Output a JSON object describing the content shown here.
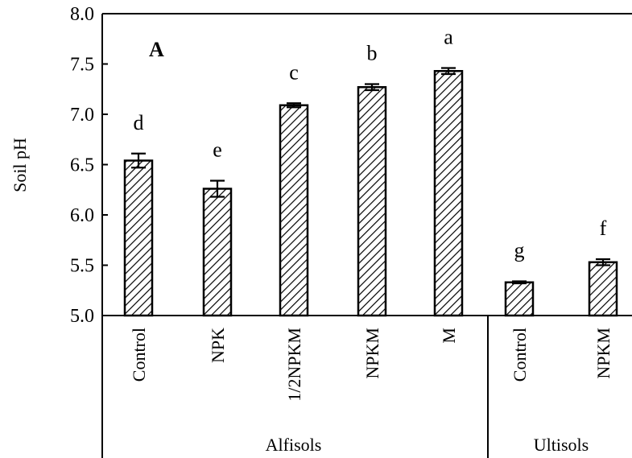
{
  "chart_data": {
    "type": "bar",
    "panel_label": "A",
    "ylabel": "Soil pH",
    "xlabel": "",
    "ylim": [
      5.0,
      8.0
    ],
    "yticks": [
      "5.0",
      "5.5",
      "6.0",
      "6.5",
      "7.0",
      "7.5",
      "8.0"
    ],
    "categories": [
      "Control",
      "NPK",
      "1/2NPKM",
      "NPKM",
      "M",
      "Control",
      "NPKM"
    ],
    "values": [
      6.54,
      6.26,
      7.09,
      7.27,
      7.43,
      5.33,
      5.53
    ],
    "errors": [
      0.07,
      0.08,
      0.02,
      0.03,
      0.03,
      0.01,
      0.03
    ],
    "significance": [
      "d",
      "e",
      "c",
      "b",
      "a",
      "g",
      "f"
    ],
    "groups": [
      {
        "name": "Alfisols",
        "count": 5
      },
      {
        "name": "Ultisols",
        "count": 2
      }
    ],
    "bar_pattern": "diagonal-hatch",
    "bar_color": "#000000",
    "grid": false,
    "legend": "none"
  }
}
